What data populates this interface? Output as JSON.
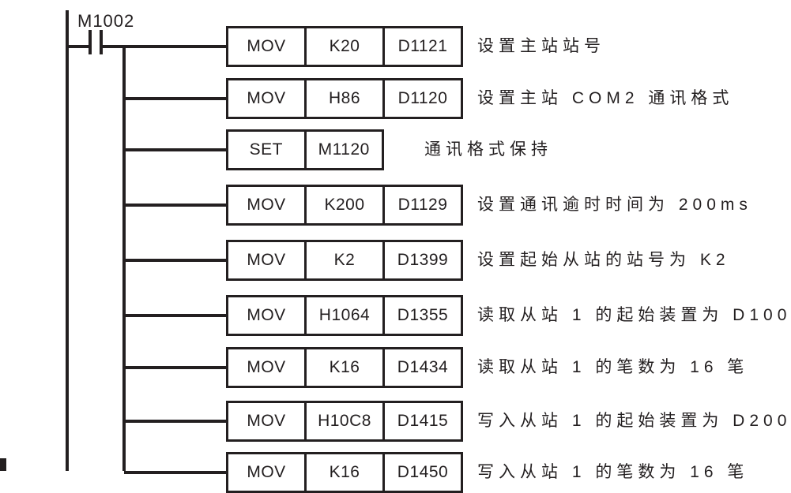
{
  "diagram": {
    "type": "plc-ladder",
    "contact_label": "M1002",
    "colors": {
      "line": "#231f20",
      "background": "#ffffff"
    },
    "rungs": [
      {
        "cells": [
          "MOV",
          "K20",
          "D1121"
        ],
        "comment": "设置主站站号"
      },
      {
        "cells": [
          "MOV",
          "H86",
          "D1120"
        ],
        "comment": "设置主站 COM2 通讯格式"
      },
      {
        "cells": [
          "SET",
          "M1120"
        ],
        "comment": "通讯格式保持"
      },
      {
        "cells": [
          "MOV",
          "K200",
          "D1129"
        ],
        "comment": "设置通讯逾时时间为 200ms"
      },
      {
        "cells": [
          "MOV",
          "K2",
          "D1399"
        ],
        "comment": "设置起始从站的站号为 K2"
      },
      {
        "cells": [
          "MOV",
          "H1064",
          "D1355"
        ],
        "comment": "读取从站 1 的起始装置为 D100"
      },
      {
        "cells": [
          "MOV",
          "K16",
          "D1434"
        ],
        "comment": "读取从站 1 的笔数为 16 笔"
      },
      {
        "cells": [
          "MOV",
          "H10C8",
          "D1415"
        ],
        "comment": "写入从站 1 的起始装置为 D200"
      },
      {
        "cells": [
          "MOV",
          "K16",
          "D1450"
        ],
        "comment": "写入从站 1 的笔数为 16 笔"
      }
    ]
  }
}
